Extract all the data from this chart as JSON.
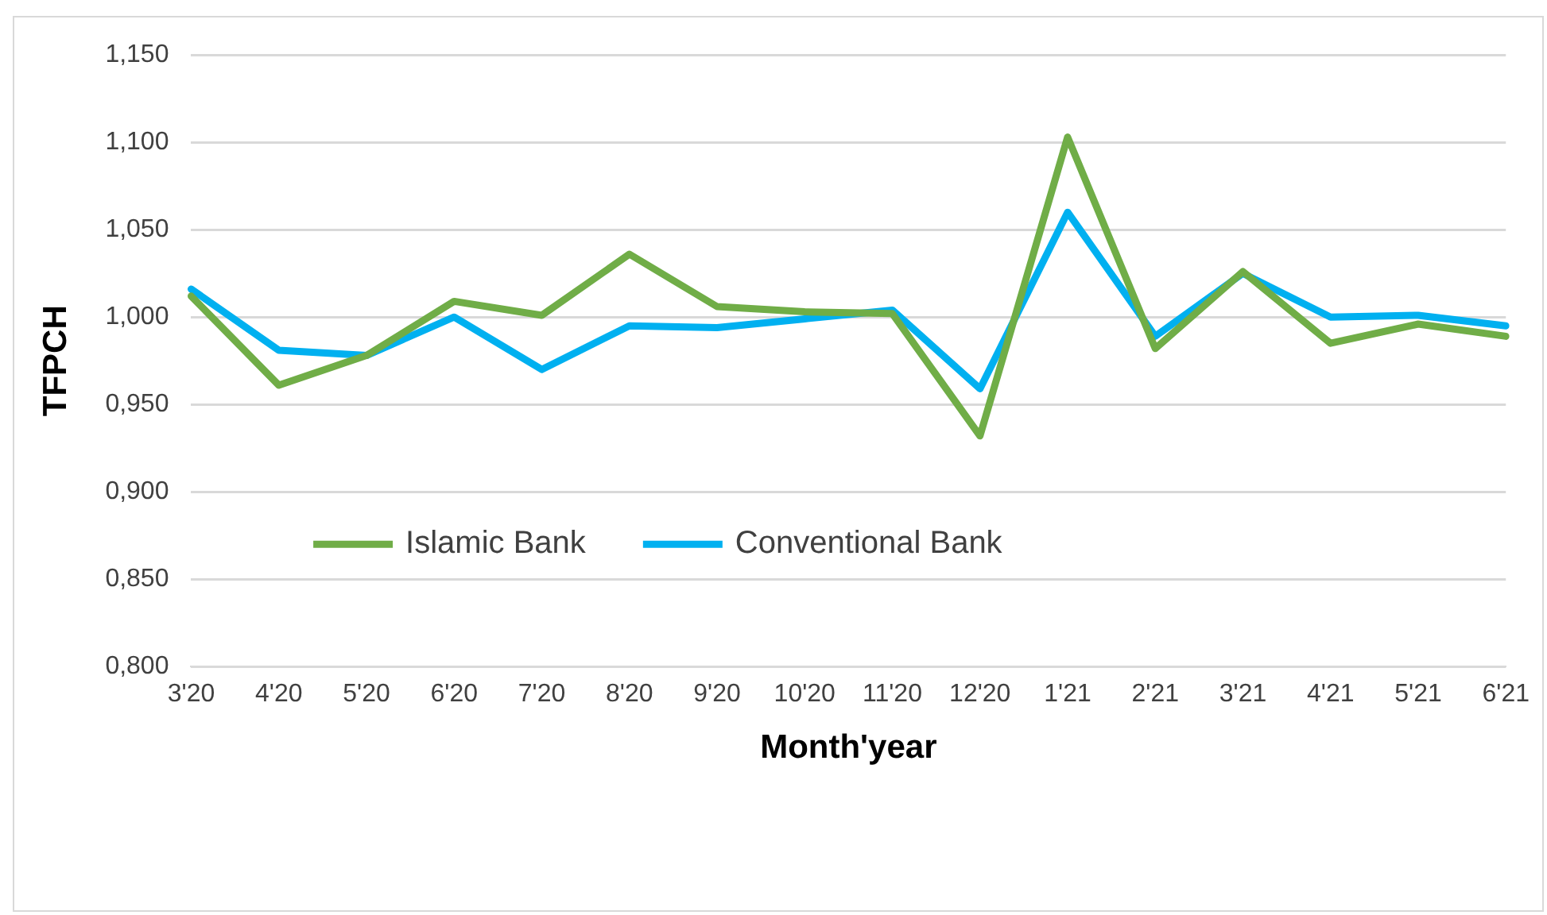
{
  "chart_data": {
    "type": "line",
    "xlabel": "Month'year",
    "ylabel": "TFPCH",
    "categories": [
      "3'20",
      "4'20",
      "5'20",
      "6'20",
      "7'20",
      "8'20",
      "9'20",
      "10'20",
      "11'20",
      "12'20",
      "1'21",
      "2'21",
      "3'21",
      "4'21",
      "5'21",
      "6'21"
    ],
    "series": [
      {
        "name": "Islamic Bank",
        "color": "#70ad47",
        "values": [
          1.012,
          0.961,
          0.978,
          1.009,
          1.001,
          1.036,
          1.006,
          1.003,
          1.002,
          0.932,
          1.103,
          0.982,
          1.026,
          0.985,
          0.996,
          0.989
        ]
      },
      {
        "name": "Conventional Bank",
        "color": "#00b0f0",
        "values": [
          1.016,
          0.981,
          0.978,
          1.0,
          0.97,
          0.995,
          0.994,
          0.999,
          1.004,
          0.959,
          1.06,
          0.989,
          1.025,
          1.0,
          1.001,
          0.995
        ]
      }
    ],
    "ylim": [
      0.8,
      1.15
    ],
    "yticks": [
      {
        "value": 0.8,
        "label": "0,800"
      },
      {
        "value": 0.85,
        "label": "0,850"
      },
      {
        "value": 0.9,
        "label": "0,900"
      },
      {
        "value": 0.95,
        "label": "0,950"
      },
      {
        "value": 1.0,
        "label": "1,000"
      },
      {
        "value": 1.05,
        "label": "1,050"
      },
      {
        "value": 1.1,
        "label": "1,100"
      },
      {
        "value": 1.15,
        "label": "1,150"
      }
    ],
    "grid": "y",
    "legend": "center",
    "marker": "none",
    "line_style": "solid"
  }
}
